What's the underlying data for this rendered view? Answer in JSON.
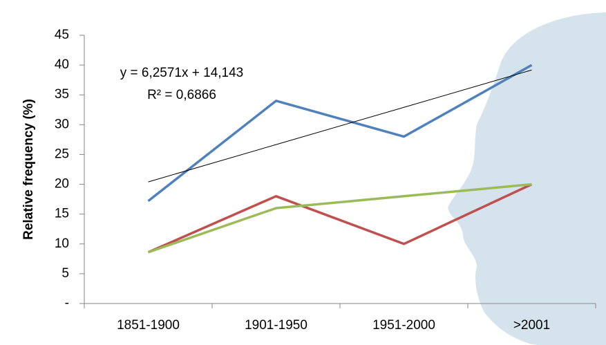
{
  "chart_data": {
    "type": "line",
    "y_label": "Relative frequency (%)",
    "categories": [
      "1851-1900",
      "1901-1950",
      "1951-2000",
      ">2001"
    ],
    "series": [
      {
        "color": "#4f81bd",
        "values": [
          17.2,
          34,
          28,
          40
        ]
      },
      {
        "color": "#c0504d",
        "values": [
          8.6,
          18,
          10,
          20
        ]
      },
      {
        "color": "#9bbb59",
        "values": [
          8.6,
          16,
          18,
          20
        ]
      },
      {
        "color": "#000000",
        "values": [
          20.4,
          26.66,
          32.91,
          39.17
        ]
      }
    ],
    "annotations": [
      "y = 6,2571x + 14,143",
      "R² = 0,6866"
    ],
    "ylim": [
      0,
      45
    ],
    "yticks": [
      {
        "value": 0,
        "label": "-"
      },
      5,
      10,
      15,
      20,
      25,
      30,
      35,
      40,
      45
    ],
    "grid": false
  }
}
